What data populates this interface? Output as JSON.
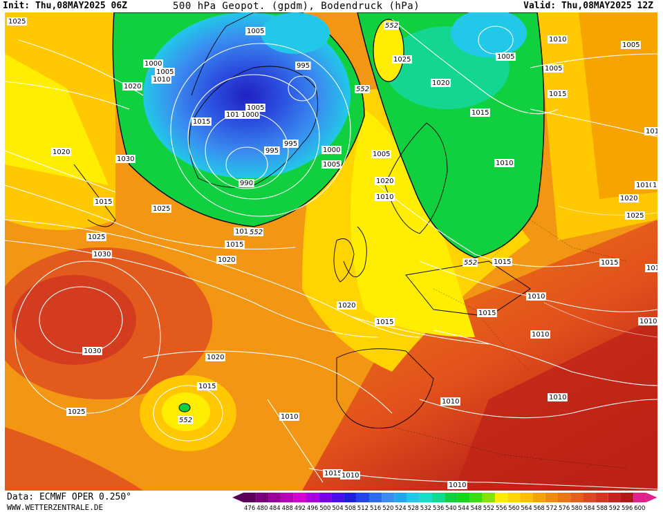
{
  "header": {
    "init": "Init: Thu,08MAY2025 06Z",
    "title": "500 hPa Geopot. (gpdm), Bodendruck (hPa)",
    "valid": "Valid: Thu,08MAY2025 12Z"
  },
  "footer": {
    "source": "Data: ECMWF OPER 0.250°",
    "website": "WWW.WETTERZENTRALE.DE"
  },
  "colors": {
    "dark_blue": "#2020c0",
    "blue": "#3a8cf0",
    "cyan": "#22c8e8",
    "green": "#10d040",
    "yellow": "#ffee00",
    "orange": "#f08a10",
    "red_orange": "#e2501c",
    "dark_red": "#b01818",
    "isobar": "#ffffff",
    "coast": "#000000"
  },
  "scale": {
    "values": [
      "476",
      "480",
      "484",
      "488",
      "492",
      "496",
      "500",
      "504",
      "508",
      "512",
      "516",
      "520",
      "524",
      "528",
      "532",
      "536",
      "540",
      "544",
      "548",
      "552",
      "556",
      "560",
      "564",
      "568",
      "572",
      "576",
      "580",
      "584",
      "588",
      "592",
      "596",
      "600"
    ],
    "colors": [
      "#5a005a",
      "#7a007a",
      "#9a009a",
      "#b800b8",
      "#d400d4",
      "#a800e0",
      "#7a00e8",
      "#4a10ea",
      "#2020dc",
      "#2244e8",
      "#2c6cf0",
      "#3a8cf0",
      "#22a8ec",
      "#22c8e8",
      "#16dcc8",
      "#12d890",
      "#10d040",
      "#12d818",
      "#3ade10",
      "#84e40a",
      "#ffee00",
      "#ffd600",
      "#ffbe00",
      "#f8a400",
      "#f08a10",
      "#ea7418",
      "#e45e1c",
      "#de481e",
      "#d43420",
      "#c82220",
      "#b01818",
      "#e0208c"
    ]
  },
  "map": {
    "contour_552_labels": [
      "552",
      "552",
      "552",
      "552",
      "552"
    ],
    "pressure_labels": [
      "1025",
      "1005",
      "1000",
      "1005",
      "1010",
      "1020",
      "995",
      "1005",
      "1015",
      "1010",
      "1000",
      "995",
      "995",
      "990",
      "1000",
      "1005",
      "1020",
      "1030",
      "1015",
      "1025",
      "1020",
      "1010",
      "1015",
      "1025",
      "1030",
      "1020",
      "1030",
      "1020",
      "1015",
      "1025",
      "1015",
      "1020",
      "1025",
      "1020",
      "1015",
      "1005",
      "1010",
      "1005",
      "1015",
      "1010",
      "1005",
      "1010",
      "1010",
      "1020",
      "1015",
      "1015",
      "1010",
      "1015",
      "1010",
      "1010",
      "1010",
      "1010",
      "1010",
      "1015",
      "1010",
      "1010",
      "1015",
      "1025",
      "1010",
      "1005",
      "1010"
    ]
  }
}
